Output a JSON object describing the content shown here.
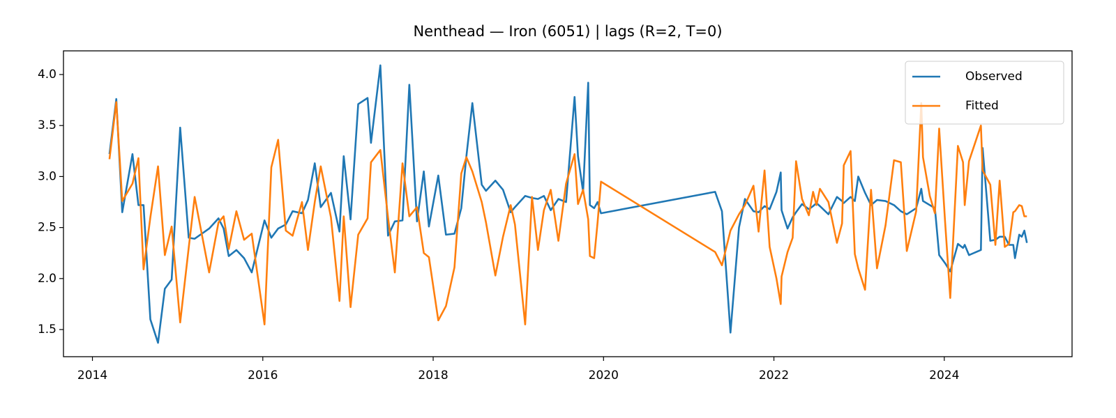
{
  "chart_data": {
    "type": "line",
    "title": "Nenthead — Iron (6051) | lags (R=2, T=0)",
    "x": [
      2014.2,
      2014.28,
      2014.35,
      2014.47,
      2014.54,
      2014.6,
      2014.68,
      2014.77,
      2014.85,
      2014.93,
      2015.03,
      2015.13,
      2015.2,
      2015.37,
      2015.48,
      2015.54,
      2015.6,
      2015.69,
      2015.78,
      2015.87,
      2016.02,
      2016.1,
      2016.18,
      2016.27,
      2016.35,
      2016.46,
      2016.53,
      2016.61,
      2016.68,
      2016.8,
      2016.9,
      2016.95,
      2017.03,
      2017.12,
      2017.23,
      2017.27,
      2017.38,
      2017.47,
      2017.55,
      2017.64,
      2017.72,
      2017.81,
      2017.89,
      2017.95,
      2018.06,
      2018.15,
      2018.25,
      2018.33,
      2018.39,
      2018.46,
      2018.57,
      2018.62,
      2018.73,
      2018.82,
      2018.91,
      2018.96,
      2019.08,
      2019.16,
      2019.23,
      2019.3,
      2019.38,
      2019.47,
      2019.56,
      2019.66,
      2019.7,
      2019.76,
      2019.82,
      2019.84,
      2019.89,
      2019.93,
      2019.97,
      2021.31,
      2021.39,
      2021.49,
      2021.59,
      2021.66,
      2021.76,
      2021.82,
      2021.89,
      2021.95,
      2022.03,
      2022.08,
      2022.09,
      2022.16,
      2022.22,
      2022.26,
      2022.33,
      2022.41,
      2022.46,
      2022.5,
      2022.54,
      2022.64,
      2022.74,
      2022.8,
      2022.82,
      2022.9,
      2022.95,
      2022.99,
      2023.07,
      2023.14,
      2023.21,
      2023.31,
      2023.41,
      2023.49,
      2023.56,
      2023.67,
      2023.73,
      2023.75,
      2023.83,
      2023.89,
      2023.94,
      2024.01,
      2024.07,
      2024.16,
      2024.22,
      2024.24,
      2024.29,
      2024.43,
      2024.45,
      2024.54,
      2024.6,
      2024.65,
      2024.71,
      2024.76,
      2024.81,
      2024.83,
      2024.88,
      2024.91,
      2024.94,
      2024.97
    ],
    "series": [
      {
        "name": "Observed",
        "color": "#1f77b4",
        "values": [
          3.22,
          3.76,
          2.65,
          3.22,
          2.72,
          2.72,
          1.6,
          1.37,
          1.9,
          1.99,
          3.48,
          2.4,
          2.39,
          2.49,
          2.59,
          2.49,
          2.22,
          2.28,
          2.2,
          2.06,
          2.57,
          2.4,
          2.49,
          2.53,
          2.66,
          2.64,
          2.77,
          3.13,
          2.7,
          2.84,
          2.46,
          3.2,
          2.58,
          3.71,
          3.77,
          3.33,
          4.09,
          2.42,
          2.56,
          2.57,
          3.9,
          2.56,
          3.05,
          2.51,
          3.01,
          2.43,
          2.44,
          2.69,
          3.2,
          3.72,
          2.92,
          2.86,
          2.96,
          2.87,
          2.65,
          2.7,
          2.81,
          2.79,
          2.78,
          2.81,
          2.67,
          2.78,
          2.75,
          3.78,
          3.2,
          2.85,
          3.92,
          2.72,
          2.69,
          2.75,
          2.64,
          2.85,
          2.66,
          1.47,
          2.5,
          2.78,
          2.66,
          2.65,
          2.71,
          2.68,
          2.85,
          3.04,
          2.67,
          2.49,
          2.6,
          2.65,
          2.73,
          2.68,
          2.71,
          2.74,
          2.71,
          2.63,
          2.8,
          2.76,
          2.74,
          2.8,
          2.76,
          3.0,
          2.84,
          2.72,
          2.77,
          2.76,
          2.72,
          2.66,
          2.63,
          2.69,
          2.88,
          2.76,
          2.72,
          2.69,
          2.23,
          2.15,
          2.07,
          2.34,
          2.3,
          2.33,
          2.23,
          2.28,
          3.28,
          2.37,
          2.38,
          2.41,
          2.41,
          2.33,
          2.33,
          2.2,
          2.43,
          2.41,
          2.47,
          2.35
        ]
      },
      {
        "name": "Fitted",
        "color": "#ff7f0e",
        "values": [
          3.17,
          3.73,
          2.76,
          2.93,
          3.18,
          2.09,
          2.6,
          3.1,
          2.23,
          2.51,
          1.57,
          2.3,
          2.8,
          2.06,
          2.55,
          2.61,
          2.29,
          2.66,
          2.38,
          2.44,
          1.55,
          3.09,
          3.36,
          2.47,
          2.42,
          2.75,
          2.28,
          2.75,
          3.1,
          2.6,
          1.78,
          2.61,
          1.72,
          2.43,
          2.59,
          3.14,
          3.26,
          2.6,
          2.06,
          3.13,
          2.61,
          2.7,
          2.25,
          2.21,
          1.59,
          1.73,
          2.11,
          3.03,
          3.19,
          3.05,
          2.75,
          2.55,
          2.03,
          2.41,
          2.72,
          2.53,
          1.55,
          2.8,
          2.28,
          2.67,
          2.87,
          2.37,
          2.93,
          3.22,
          2.73,
          2.87,
          2.58,
          2.22,
          2.2,
          2.55,
          2.95,
          2.26,
          2.13,
          2.47,
          2.63,
          2.72,
          2.91,
          2.46,
          3.06,
          2.31,
          2.0,
          1.75,
          2.02,
          2.26,
          2.4,
          3.15,
          2.78,
          2.62,
          2.85,
          2.72,
          2.88,
          2.75,
          2.35,
          2.54,
          3.11,
          3.25,
          2.24,
          2.1,
          1.89,
          2.87,
          2.1,
          2.52,
          3.16,
          3.14,
          2.27,
          2.66,
          3.72,
          3.19,
          2.81,
          2.64,
          3.47,
          2.55,
          1.81,
          3.3,
          3.14,
          2.72,
          3.15,
          3.5,
          3.06,
          2.92,
          2.33,
          2.96,
          2.31,
          2.34,
          2.65,
          2.66,
          2.72,
          2.71,
          2.61,
          2.61
        ]
      }
    ],
    "xlim": [
      2013.66,
      2025.5
    ],
    "xticks": [
      2014,
      2016,
      2018,
      2020,
      2022,
      2024
    ],
    "ylim": [
      1.234,
      4.232
    ],
    "yticks": [
      {
        "value": 1.5,
        "label": "1.5"
      },
      {
        "value": 2.0,
        "label": "2.0"
      },
      {
        "value": 2.5,
        "label": "2.5"
      },
      {
        "value": 3.0,
        "label": "3.0"
      },
      {
        "value": 3.5,
        "label": "3.5"
      },
      {
        "value": 4.0,
        "label": "4.0"
      }
    ],
    "grid": false,
    "legend": "upper right"
  }
}
